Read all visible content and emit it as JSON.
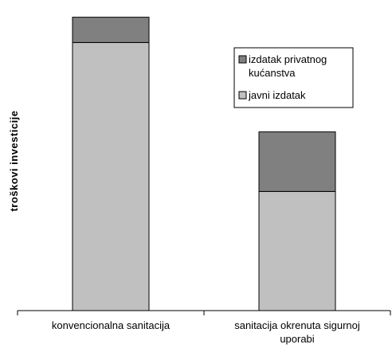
{
  "chart_data": {
    "type": "bar",
    "stacked": true,
    "categories": [
      [
        "konvencionalna sanitacija"
      ],
      [
        "sanitacija okrenuta sigurnoj",
        "uporabi"
      ]
    ],
    "series": [
      {
        "name": "javni izdatak",
        "values": [
          90,
          40
        ],
        "color": "#c0c0c0"
      },
      {
        "name": "izdatak privatnog kućanstva",
        "name_lines": [
          "izdatak privatnog",
          "kućanstva"
        ],
        "values": [
          8.5,
          20
        ],
        "color": "#808080"
      }
    ],
    "ylabel": "troškovi investicije",
    "xlabel": "",
    "ylim": [
      0,
      100
    ],
    "grid": false,
    "y_tick_labels": false,
    "legend_position": "right-middle"
  }
}
